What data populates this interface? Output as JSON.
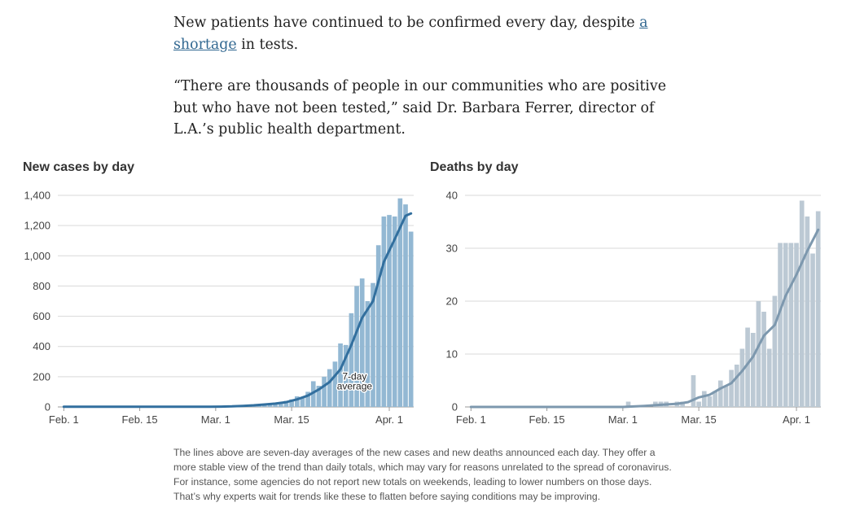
{
  "article": {
    "p1_before": "New patients have continued to be confirmed every day, despite ",
    "p1_link": "a shortage",
    "p1_after": " in tests.",
    "p2": "“There are thousands of people in our communities who are positive but who have not been tested,” said Dr. Barbara Ferrer, director of L.A.’s public health department."
  },
  "note": "The lines above are seven-day averages of the new cases and new deaths announced each day. They offer a more stable view of the trend than daily totals, which may vary for reasons unrelated to the spread of coronavirus. For instance, some agencies do not report new totals on weekends, leading to lower numbers on those days. That’s why experts wait for trends like these to flatten before saying conditions may be improving.",
  "colors": {
    "cases_bar": "#93b8d3",
    "cases_line": "#326f9e",
    "deaths_bar": "#bcc9d4",
    "deaths_line": "#7d98ae",
    "grid": "#d9d9d9",
    "link": "#326891"
  },
  "chart_data": [
    {
      "type": "bar",
      "title": "New cases by day",
      "xlabel": "",
      "ylabel": "",
      "ylim": [
        0,
        1400
      ],
      "yticks": [
        0,
        200,
        400,
        600,
        800,
        1000,
        1200,
        1400
      ],
      "ytick_labels": [
        "0",
        "200",
        "400",
        "600",
        "800",
        "1,000",
        "1,200",
        "1,400"
      ],
      "xticks": [
        {
          "day": 1,
          "label": "Feb. 1"
        },
        {
          "day": 15,
          "label": "Feb. 15"
        },
        {
          "day": 29,
          "label": "Mar. 1"
        },
        {
          "day": 43,
          "label": "Mar. 15"
        },
        {
          "day": 61,
          "label": "Apr. 1"
        }
      ],
      "day_range": [
        1,
        65
      ],
      "days": [
        1,
        2,
        3,
        4,
        5,
        6,
        7,
        8,
        9,
        10,
        11,
        12,
        13,
        14,
        15,
        16,
        17,
        18,
        19,
        20,
        21,
        22,
        23,
        24,
        25,
        26,
        27,
        28,
        29,
        30,
        31,
        32,
        33,
        34,
        35,
        36,
        37,
        38,
        39,
        40,
        41,
        42,
        43,
        44,
        45,
        46,
        47,
        48,
        49,
        50,
        51,
        52,
        53,
        54,
        55,
        56,
        57,
        58,
        59,
        60,
        61,
        62,
        63,
        64,
        65
      ],
      "values": [
        1,
        0,
        0,
        0,
        0,
        0,
        0,
        0,
        0,
        0,
        0,
        0,
        0,
        0,
        0,
        0,
        0,
        0,
        0,
        0,
        0,
        0,
        0,
        0,
        0,
        0,
        0,
        0,
        0,
        2,
        3,
        5,
        5,
        8,
        8,
        12,
        15,
        20,
        15,
        25,
        30,
        40,
        50,
        70,
        60,
        100,
        170,
        140,
        200,
        250,
        300,
        420,
        410,
        620,
        800,
        850,
        700,
        820,
        1070,
        1260,
        1270,
        1260,
        1380,
        1340,
        1160
      ],
      "series": [
        {
          "name": "7-day average",
          "days": [
            1,
            5,
            10,
            15,
            20,
            25,
            28,
            30,
            32,
            34,
            36,
            38,
            40,
            42,
            44,
            46,
            48,
            50,
            52,
            54,
            56,
            58,
            60,
            62,
            64,
            65
          ],
          "values": [
            1,
            1,
            1,
            1,
            1,
            1,
            1,
            2,
            4,
            7,
            11,
            16,
            22,
            32,
            50,
            75,
            115,
            165,
            250,
            410,
            590,
            700,
            960,
            1110,
            1265,
            1280
          ]
        }
      ],
      "annotation": {
        "lines": [
          "7-day",
          "average"
        ],
        "day": 54,
        "value": 180
      }
    },
    {
      "type": "bar",
      "title": "Deaths by day",
      "xlabel": "",
      "ylabel": "",
      "ylim": [
        0,
        40
      ],
      "yticks": [
        0,
        10,
        20,
        30,
        40
      ],
      "ytick_labels": [
        "0",
        "10",
        "20",
        "30",
        "40"
      ],
      "xticks": [
        {
          "day": 1,
          "label": "Feb. 1"
        },
        {
          "day": 15,
          "label": "Feb. 15"
        },
        {
          "day": 29,
          "label": "Mar. 1"
        },
        {
          "day": 43,
          "label": "Mar. 15"
        },
        {
          "day": 61,
          "label": "Apr. 1"
        }
      ],
      "day_range": [
        1,
        65
      ],
      "days": [
        1,
        2,
        3,
        4,
        5,
        6,
        7,
        8,
        9,
        10,
        11,
        12,
        13,
        14,
        15,
        16,
        17,
        18,
        19,
        20,
        21,
        22,
        23,
        24,
        25,
        26,
        27,
        28,
        29,
        30,
        31,
        32,
        33,
        34,
        35,
        36,
        37,
        38,
        39,
        40,
        41,
        42,
        43,
        44,
        45,
        46,
        47,
        48,
        49,
        50,
        51,
        52,
        53,
        54,
        55,
        56,
        57,
        58,
        59,
        60,
        61,
        62,
        63,
        64,
        65
      ],
      "values": [
        0,
        0,
        0,
        0,
        0,
        0,
        0,
        0,
        0,
        0,
        0,
        0,
        0,
        0,
        0,
        0,
        0,
        0,
        0,
        0,
        0,
        0,
        0,
        0,
        0,
        0,
        0,
        0,
        0,
        1,
        0,
        0,
        0,
        0,
        1,
        1,
        1,
        0,
        1,
        1,
        0,
        6,
        1,
        3,
        2,
        3,
        5,
        4,
        7,
        8,
        11,
        15,
        14,
        20,
        18,
        11,
        21,
        31,
        31,
        31,
        31,
        39,
        36,
        29,
        37
      ],
      "series": [
        {
          "name": "7-day average",
          "days": [
            1,
            10,
            20,
            29,
            33,
            36,
            39,
            41,
            43,
            45,
            47,
            49,
            51,
            53,
            55,
            57,
            59,
            61,
            63,
            65
          ],
          "values": [
            0,
            0,
            0,
            0,
            0.2,
            0.4,
            0.6,
            0.9,
            1.8,
            2.3,
            3.5,
            4.5,
            6.8,
            9.5,
            13.5,
            15.5,
            21,
            25,
            29.5,
            33.5
          ]
        }
      ]
    }
  ]
}
